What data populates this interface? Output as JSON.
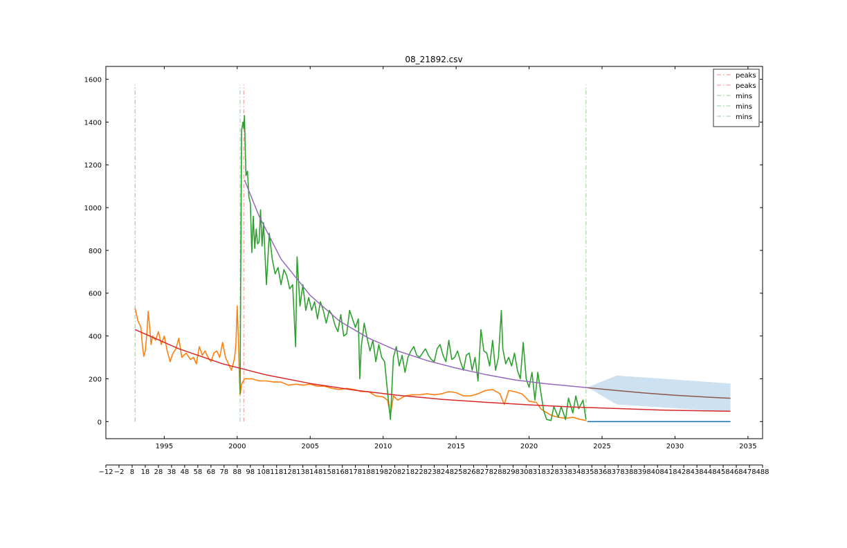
{
  "chart_data": {
    "type": "line",
    "title": "08_21892.csv",
    "xlabel": "",
    "ylabel": "",
    "xlim": [
      1991.0,
      2036.0
    ],
    "ylim": [
      -80,
      1660
    ],
    "yticks": [
      0,
      200,
      400,
      600,
      800,
      1000,
      1200,
      1400,
      1600
    ],
    "xticks_years": [
      1995,
      2000,
      2005,
      2010,
      2015,
      2020,
      2025,
      2030,
      2035
    ],
    "secondary_x": {
      "range": [
        -12,
        488
      ],
      "ticks": [
        -12,
        -2,
        8,
        18,
        28,
        38,
        48,
        58,
        68,
        78,
        88,
        98,
        108,
        118,
        128,
        138,
        148,
        158,
        168,
        178,
        188,
        198,
        208,
        218,
        228,
        238,
        248,
        258,
        268,
        278,
        288,
        298,
        308,
        318,
        328,
        338,
        348,
        358,
        368,
        378,
        388,
        398,
        408,
        418,
        428,
        438,
        448,
        458,
        468,
        478,
        488
      ]
    },
    "grid": false,
    "legend_position": "top-right",
    "legend": [
      {
        "label": "peaks",
        "color": "#f4a6a6",
        "style": "dashdot"
      },
      {
        "label": "peaks",
        "color": "#f4a6a6",
        "style": "dashdot"
      },
      {
        "label": "mins",
        "color": "#a8d8a8",
        "style": "dashdot"
      },
      {
        "label": "mins",
        "color": "#a8d8a8",
        "style": "dashdot"
      },
      {
        "label": "mins",
        "color": "#a8d8a8",
        "style": "dashdot"
      }
    ],
    "vlines": [
      {
        "x": 1993.0,
        "color": "#f4a6a6",
        "style": "dashdot"
      },
      {
        "x": 1993.0,
        "color": "#a8d8a8",
        "style": "dashdot"
      },
      {
        "x": 2000.2,
        "color": "#a8d8a8",
        "style": "dashdot"
      },
      {
        "x": 2000.45,
        "color": "#f4a6a6",
        "style": "dashdot"
      },
      {
        "x": 2023.9,
        "color": "#a8d8a8",
        "style": "dashdot"
      }
    ],
    "vline_range": [
      0,
      1575
    ],
    "series": [
      {
        "color": "#ff7f0e",
        "points": [
          [
            1993.0,
            530
          ],
          [
            1993.1,
            500
          ],
          [
            1993.2,
            470
          ],
          [
            1993.3,
            455
          ],
          [
            1993.4,
            440
          ],
          [
            1993.5,
            360
          ],
          [
            1993.6,
            305
          ],
          [
            1993.7,
            330
          ],
          [
            1993.8,
            400
          ],
          [
            1993.9,
            515
          ],
          [
            1994.0,
            440
          ],
          [
            1994.1,
            360
          ],
          [
            1994.2,
            400
          ],
          [
            1994.4,
            380
          ],
          [
            1994.6,
            420
          ],
          [
            1994.8,
            360
          ],
          [
            1995.0,
            400
          ],
          [
            1995.2,
            330
          ],
          [
            1995.4,
            280
          ],
          [
            1995.6,
            320
          ],
          [
            1995.8,
            340
          ],
          [
            1996.0,
            390
          ],
          [
            1996.2,
            300
          ],
          [
            1996.5,
            320
          ],
          [
            1996.8,
            290
          ],
          [
            1997.0,
            300
          ],
          [
            1997.2,
            270
          ],
          [
            1997.4,
            350
          ],
          [
            1997.6,
            310
          ],
          [
            1997.8,
            330
          ],
          [
            1998.0,
            300
          ],
          [
            1998.2,
            280
          ],
          [
            1998.4,
            320
          ],
          [
            1998.6,
            330
          ],
          [
            1998.8,
            300
          ],
          [
            1999.0,
            370
          ],
          [
            1999.2,
            300
          ],
          [
            1999.4,
            270
          ],
          [
            1999.6,
            240
          ],
          [
            1999.8,
            290
          ],
          [
            1999.9,
            350
          ],
          [
            2000.0,
            540
          ],
          [
            2000.1,
            340
          ],
          [
            2000.15,
            200
          ],
          [
            2000.2,
            125
          ],
          [
            2000.3,
            175
          ],
          [
            2000.5,
            200
          ],
          [
            2000.8,
            200
          ],
          [
            2001.0,
            200
          ],
          [
            2001.5,
            190
          ],
          [
            2002.0,
            190
          ],
          [
            2002.5,
            185
          ],
          [
            2003.0,
            185
          ],
          [
            2003.5,
            170
          ],
          [
            2004.0,
            175
          ],
          [
            2004.5,
            170
          ],
          [
            2005.0,
            175
          ],
          [
            2005.5,
            165
          ],
          [
            2006.0,
            165
          ],
          [
            2006.5,
            155
          ],
          [
            2007.0,
            150
          ],
          [
            2007.5,
            155
          ],
          [
            2008.0,
            150
          ],
          [
            2008.5,
            140
          ],
          [
            2009.0,
            140
          ],
          [
            2009.5,
            120
          ],
          [
            2010.0,
            115
          ],
          [
            2010.3,
            100
          ],
          [
            2010.5,
            30
          ],
          [
            2010.7,
            120
          ],
          [
            2011.0,
            100
          ],
          [
            2011.5,
            120
          ],
          [
            2012.0,
            125
          ],
          [
            2012.5,
            125
          ],
          [
            2013.0,
            130
          ],
          [
            2013.5,
            125
          ],
          [
            2014.0,
            130
          ],
          [
            2014.5,
            140
          ],
          [
            2015.0,
            135
          ],
          [
            2015.5,
            120
          ],
          [
            2016.0,
            120
          ],
          [
            2016.5,
            130
          ],
          [
            2017.0,
            145
          ],
          [
            2017.5,
            150
          ],
          [
            2018.0,
            130
          ],
          [
            2018.3,
            80
          ],
          [
            2018.6,
            145
          ],
          [
            2019.0,
            140
          ],
          [
            2019.5,
            130
          ],
          [
            2019.8,
            110
          ],
          [
            2020.0,
            95
          ],
          [
            2020.5,
            90
          ],
          [
            2020.8,
            60
          ],
          [
            2021.0,
            50
          ],
          [
            2021.5,
            30
          ],
          [
            2022.0,
            20
          ],
          [
            2022.5,
            15
          ],
          [
            2023.0,
            20
          ],
          [
            2023.5,
            10
          ],
          [
            2023.9,
            5
          ]
        ]
      },
      {
        "color": "#2ca02c",
        "points": [
          [
            2000.2,
            130
          ],
          [
            2000.22,
            400
          ],
          [
            2000.3,
            1360
          ],
          [
            2000.4,
            1400
          ],
          [
            2000.45,
            1370
          ],
          [
            2000.5,
            1430
          ],
          [
            2000.55,
            1270
          ],
          [
            2000.6,
            1150
          ],
          [
            2000.7,
            1170
          ],
          [
            2000.8,
            1050
          ],
          [
            2000.9,
            1020
          ],
          [
            2001.0,
            790
          ],
          [
            2001.1,
            960
          ],
          [
            2001.2,
            810
          ],
          [
            2001.3,
            900
          ],
          [
            2001.4,
            830
          ],
          [
            2001.5,
            840
          ],
          [
            2001.6,
            990
          ],
          [
            2001.7,
            820
          ],
          [
            2001.8,
            930
          ],
          [
            2002.0,
            640
          ],
          [
            2002.2,
            880
          ],
          [
            2002.4,
            760
          ],
          [
            2002.6,
            690
          ],
          [
            2002.8,
            720
          ],
          [
            2003.0,
            640
          ],
          [
            2003.2,
            710
          ],
          [
            2003.4,
            680
          ],
          [
            2003.6,
            620
          ],
          [
            2003.8,
            640
          ],
          [
            2004.0,
            350
          ],
          [
            2004.1,
            770
          ],
          [
            2004.3,
            540
          ],
          [
            2004.5,
            640
          ],
          [
            2004.7,
            520
          ],
          [
            2004.9,
            580
          ],
          [
            2005.1,
            520
          ],
          [
            2005.3,
            560
          ],
          [
            2005.5,
            480
          ],
          [
            2005.7,
            560
          ],
          [
            2005.9,
            520
          ],
          [
            2006.1,
            460
          ],
          [
            2006.3,
            520
          ],
          [
            2006.5,
            500
          ],
          [
            2006.7,
            450
          ],
          [
            2006.9,
            420
          ],
          [
            2007.1,
            500
          ],
          [
            2007.3,
            400
          ],
          [
            2007.5,
            410
          ],
          [
            2007.7,
            520
          ],
          [
            2007.9,
            480
          ],
          [
            2008.1,
            440
          ],
          [
            2008.3,
            480
          ],
          [
            2008.4,
            200
          ],
          [
            2008.5,
            350
          ],
          [
            2008.7,
            460
          ],
          [
            2008.9,
            390
          ],
          [
            2009.1,
            330
          ],
          [
            2009.3,
            380
          ],
          [
            2009.5,
            280
          ],
          [
            2009.7,
            360
          ],
          [
            2009.9,
            300
          ],
          [
            2010.1,
            280
          ],
          [
            2010.3,
            140
          ],
          [
            2010.5,
            10
          ],
          [
            2010.7,
            300
          ],
          [
            2010.9,
            350
          ],
          [
            2011.1,
            260
          ],
          [
            2011.3,
            310
          ],
          [
            2011.5,
            230
          ],
          [
            2011.7,
            300
          ],
          [
            2011.9,
            330
          ],
          [
            2012.1,
            350
          ],
          [
            2012.3,
            310
          ],
          [
            2012.5,
            300
          ],
          [
            2012.7,
            320
          ],
          [
            2012.9,
            340
          ],
          [
            2013.1,
            310
          ],
          [
            2013.3,
            290
          ],
          [
            2013.5,
            280
          ],
          [
            2013.7,
            340
          ],
          [
            2013.9,
            360
          ],
          [
            2014.1,
            310
          ],
          [
            2014.3,
            280
          ],
          [
            2014.5,
            380
          ],
          [
            2014.7,
            290
          ],
          [
            2014.9,
            300
          ],
          [
            2015.1,
            330
          ],
          [
            2015.3,
            280
          ],
          [
            2015.5,
            240
          ],
          [
            2015.7,
            310
          ],
          [
            2015.9,
            320
          ],
          [
            2016.1,
            240
          ],
          [
            2016.3,
            300
          ],
          [
            2016.5,
            190
          ],
          [
            2016.7,
            430
          ],
          [
            2016.9,
            330
          ],
          [
            2017.1,
            320
          ],
          [
            2017.3,
            260
          ],
          [
            2017.5,
            380
          ],
          [
            2017.7,
            240
          ],
          [
            2017.9,
            300
          ],
          [
            2018.1,
            520
          ],
          [
            2018.2,
            340
          ],
          [
            2018.4,
            270
          ],
          [
            2018.6,
            300
          ],
          [
            2018.8,
            260
          ],
          [
            2019.0,
            320
          ],
          [
            2019.2,
            240
          ],
          [
            2019.4,
            200
          ],
          [
            2019.6,
            370
          ],
          [
            2019.8,
            200
          ],
          [
            2020.0,
            160
          ],
          [
            2020.2,
            230
          ],
          [
            2020.4,
            100
          ],
          [
            2020.6,
            230
          ],
          [
            2020.8,
            140
          ],
          [
            2021.0,
            50
          ],
          [
            2021.2,
            10
          ],
          [
            2021.5,
            5
          ],
          [
            2021.7,
            70
          ],
          [
            2022.0,
            20
          ],
          [
            2022.2,
            70
          ],
          [
            2022.5,
            10
          ],
          [
            2022.7,
            110
          ],
          [
            2023.0,
            40
          ],
          [
            2023.2,
            120
          ],
          [
            2023.4,
            60
          ],
          [
            2023.7,
            100
          ],
          [
            2023.9,
            10
          ]
        ]
      },
      {
        "color": "#d62728",
        "fit": true,
        "points": [
          [
            1993.0,
            430
          ],
          [
            1996.0,
            340
          ],
          [
            1999.0,
            270
          ],
          [
            2002.0,
            218
          ],
          [
            2005.0,
            178
          ],
          [
            2008.0,
            147
          ],
          [
            2011.0,
            123
          ],
          [
            2014.0,
            104
          ],
          [
            2017.0,
            90
          ],
          [
            2020.0,
            78
          ],
          [
            2023.0,
            68
          ],
          [
            2026.0,
            61
          ],
          [
            2029.0,
            54
          ],
          [
            2032.0,
            50
          ],
          [
            2033.8,
            48
          ]
        ]
      },
      {
        "color": "#9467bd",
        "fit": true,
        "points": [
          [
            2000.5,
            1130
          ],
          [
            2001.5,
            960
          ],
          [
            2003.0,
            760
          ],
          [
            2005.0,
            590
          ],
          [
            2007.0,
            470
          ],
          [
            2009.0,
            390
          ],
          [
            2011.0,
            330
          ],
          [
            2013.0,
            285
          ],
          [
            2015.0,
            250
          ],
          [
            2017.0,
            220
          ],
          [
            2019.0,
            195
          ],
          [
            2021.0,
            178
          ],
          [
            2023.0,
            165
          ],
          [
            2024.0,
            158
          ]
        ]
      },
      {
        "color": "#8c564b",
        "fit": true,
        "points": [
          [
            2024.0,
            158
          ],
          [
            2026.0,
            145
          ],
          [
            2028.0,
            133
          ],
          [
            2030.0,
            123
          ],
          [
            2032.0,
            115
          ],
          [
            2033.8,
            109
          ]
        ]
      },
      {
        "color": "#1f77b4",
        "points": [
          [
            2024.0,
            0
          ],
          [
            2033.8,
            0
          ]
        ]
      }
    ],
    "band": {
      "color": "#a6c8e4",
      "upper": [
        [
          2024.0,
          160
        ],
        [
          2026.0,
          215
        ],
        [
          2033.8,
          178
        ]
      ],
      "lower": [
        [
          2024.0,
          160
        ],
        [
          2026.0,
          80
        ],
        [
          2033.8,
          45
        ]
      ]
    }
  }
}
